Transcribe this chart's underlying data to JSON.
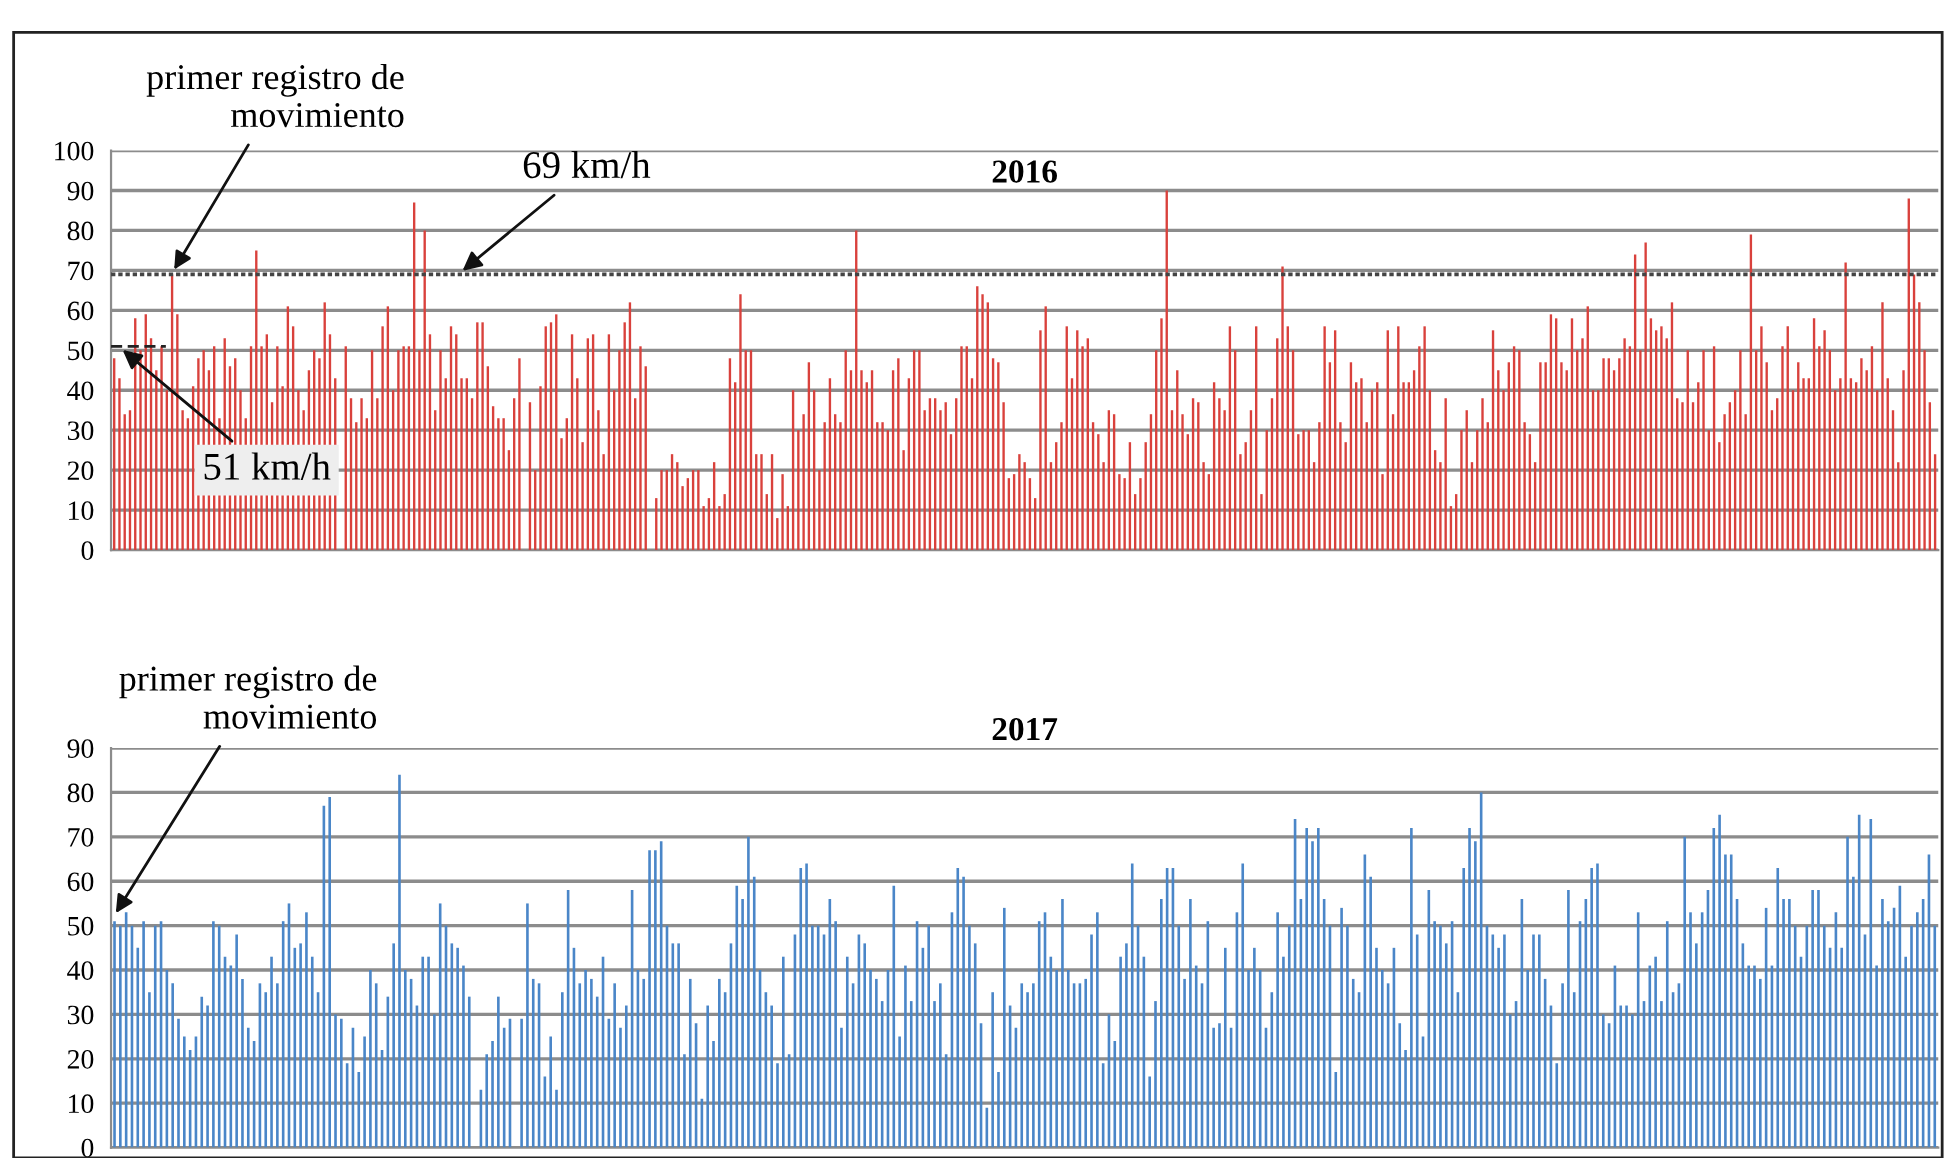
{
  "chart_data": [
    {
      "type": "bar",
      "title": "2016",
      "color": "#d9413c",
      "ylim": [
        0,
        100
      ],
      "yticks": [
        0,
        10,
        20,
        30,
        40,
        50,
        60,
        70,
        80,
        90,
        100
      ],
      "grid": "y",
      "tick_labels": "y",
      "ref_lines": [
        {
          "axis": "y",
          "value": 69,
          "label": "69 km/h",
          "line_style": "dotted",
          "color": "#444444"
        }
      ],
      "annotations": [
        "primer registro de\nmovimiento",
        {
          "text": "51 km/h",
          "y": 51
        }
      ],
      "categories": [
        null,
        null,
        null,
        null,
        null,
        null,
        null,
        null,
        null,
        null,
        null,
        null,
        null,
        null,
        null,
        null,
        null,
        null,
        null,
        null,
        null,
        null,
        null,
        null,
        null,
        null,
        null,
        null,
        null,
        null,
        null,
        null,
        null,
        null,
        null,
        null,
        null,
        null,
        null,
        null,
        null,
        null,
        null,
        null,
        null,
        null,
        null,
        null,
        null,
        null,
        null,
        null,
        null,
        null,
        null,
        null,
        null,
        null,
        null,
        null,
        null,
        null,
        null,
        null,
        null,
        null,
        null,
        null,
        null,
        null,
        null,
        null,
        null,
        null,
        null,
        null,
        null,
        null,
        null,
        null,
        null,
        null,
        null,
        null,
        null,
        null,
        null,
        null,
        null,
        null,
        null,
        null,
        null,
        null,
        null,
        null,
        null,
        null,
        null,
        null,
        null,
        null,
        null,
        null,
        null,
        null,
        null,
        null,
        null,
        null,
        null,
        null,
        null,
        null,
        null,
        null,
        null,
        null,
        null,
        null,
        null,
        null,
        null,
        null,
        null,
        null,
        null,
        null,
        null,
        null,
        null,
        null,
        null,
        null,
        null,
        null,
        null,
        null,
        null,
        null,
        null,
        null,
        null,
        null,
        null,
        null,
        null,
        null,
        null,
        null,
        null,
        null,
        null,
        null,
        null,
        null,
        null,
        null,
        null,
        null,
        null,
        null,
        null,
        null,
        null,
        null,
        null,
        null,
        null,
        null,
        null,
        null,
        null,
        null,
        null,
        null,
        null,
        null,
        null,
        null,
        null,
        null,
        null,
        null,
        null,
        null,
        null,
        null,
        null,
        null,
        null,
        null,
        null,
        null,
        null,
        null,
        null,
        null,
        null,
        null,
        null,
        null,
        null,
        null,
        null,
        null,
        null,
        null,
        null,
        null,
        null,
        null,
        null,
        null,
        null,
        null,
        null,
        null,
        null,
        null,
        null,
        null,
        null,
        null,
        null,
        null,
        null,
        null,
        null,
        null,
        null,
        null,
        null,
        null,
        null,
        null,
        null,
        null,
        null,
        null,
        null,
        null,
        null,
        null,
        null,
        null,
        null,
        null,
        null,
        null,
        null,
        null,
        null,
        null,
        null,
        null,
        null,
        null,
        null,
        null,
        null,
        null,
        null,
        null,
        null,
        null,
        null,
        null,
        null,
        null,
        null,
        null,
        null,
        null,
        null,
        null,
        null,
        null,
        null,
        null,
        null,
        null,
        null,
        null,
        null,
        null,
        null,
        null,
        null,
        null,
        null,
        null,
        null,
        null,
        null,
        null,
        null,
        null,
        null,
        null,
        null,
        null,
        null,
        null,
        null,
        null,
        null,
        null,
        null,
        null,
        null,
        null,
        null,
        null,
        null,
        null,
        null,
        null,
        null,
        null,
        null,
        null,
        null,
        null,
        null,
        null,
        null,
        null,
        null,
        null,
        null,
        null,
        null,
        null,
        null,
        null,
        null,
        null,
        null,
        null,
        null,
        null,
        null,
        null,
        null,
        null,
        null
      ],
      "values": [
        48,
        43,
        34,
        35,
        58,
        50,
        59,
        53,
        45,
        51,
        40,
        69,
        59,
        35,
        33,
        41,
        48,
        50,
        45,
        51,
        33,
        53,
        46,
        48,
        40,
        33,
        51,
        75,
        51,
        54,
        37,
        51,
        41,
        61,
        56,
        40,
        35,
        45,
        50,
        48,
        62,
        54,
        43,
        0,
        51,
        38,
        32,
        38,
        33,
        50,
        38,
        56,
        61,
        40,
        50,
        51,
        51,
        87,
        50,
        80,
        54,
        35,
        50,
        43,
        56,
        54,
        43,
        43,
        38,
        57,
        57,
        46,
        36,
        33,
        33,
        25,
        38,
        48,
        0,
        37,
        20,
        41,
        56,
        57,
        59,
        28,
        33,
        54,
        43,
        27,
        53,
        54,
        35,
        24,
        54,
        40,
        50,
        57,
        62,
        38,
        51,
        46,
        0,
        13,
        20,
        20,
        24,
        22,
        16,
        18,
        20,
        20,
        11,
        13,
        22,
        11,
        14,
        48,
        42,
        64,
        50,
        50,
        24,
        24,
        14,
        24,
        8,
        19,
        11,
        40,
        30,
        34,
        47,
        40,
        20,
        32,
        43,
        34,
        32,
        50,
        45,
        80,
        45,
        42,
        45,
        32,
        32,
        30,
        45,
        48,
        25,
        43,
        50,
        50,
        35,
        38,
        38,
        35,
        37,
        29,
        38,
        51,
        51,
        43,
        66,
        64,
        62,
        48,
        47,
        37,
        18,
        19,
        24,
        22,
        18,
        13,
        55,
        61,
        22,
        27,
        32,
        56,
        43,
        55,
        51,
        53,
        32,
        29,
        22,
        35,
        34,
        19,
        18,
        27,
        14,
        18,
        27,
        34,
        50,
        58,
        90,
        35,
        45,
        34,
        29,
        38,
        37,
        22,
        19,
        42,
        38,
        35,
        56,
        50,
        24,
        27,
        35,
        56,
        14,
        30,
        38,
        53,
        71,
        56,
        50,
        29,
        30,
        30,
        22,
        32,
        56,
        47,
        55,
        32,
        27,
        47,
        42,
        43,
        32,
        40,
        42,
        19,
        55,
        34,
        56,
        42,
        42,
        45,
        51,
        56,
        40,
        25,
        22,
        38,
        11,
        14,
        30,
        35,
        22,
        30,
        38,
        32,
        55,
        45,
        40,
        47,
        51,
        50,
        32,
        29,
        22,
        47,
        47,
        59,
        58,
        47,
        45,
        58,
        50,
        53,
        61,
        40,
        40,
        48,
        48,
        45,
        48,
        53,
        51,
        74,
        50,
        77,
        58,
        55,
        56,
        53,
        62,
        38,
        37,
        50,
        37,
        42,
        50,
        30,
        51,
        27,
        34,
        37,
        40,
        50,
        34,
        79,
        50,
        56,
        47,
        35,
        38,
        51,
        56,
        40,
        47,
        43,
        43,
        58,
        51,
        55,
        50,
        40,
        43,
        72,
        43,
        42,
        48,
        45,
        51,
        40,
        62,
        43,
        35,
        22,
        45,
        88,
        69,
        62,
        50,
        37,
        24
      ]
    },
    {
      "type": "bar",
      "title": "2017",
      "color": "#4a86c8",
      "ylim": [
        0,
        90
      ],
      "yticks": [
        0,
        10,
        20,
        30,
        40,
        50,
        60,
        70,
        80,
        90
      ],
      "grid": "y",
      "tick_labels": "y",
      "annotations": [
        "primer registro de\nmovimiento"
      ],
      "categories": [
        null,
        null,
        null,
        null,
        null,
        null,
        null,
        null,
        null,
        null,
        null,
        null,
        null,
        null,
        null,
        null,
        null,
        null,
        null,
        null,
        null,
        null,
        null,
        null,
        null,
        null,
        null,
        null,
        null,
        null,
        null,
        null,
        null,
        null,
        null,
        null,
        null,
        null,
        null,
        null,
        null,
        null,
        null,
        null,
        null,
        null,
        null,
        null,
        null,
        null,
        null,
        null,
        null,
        null,
        null,
        null,
        null,
        null,
        null,
        null,
        null,
        null,
        null,
        null,
        null,
        null,
        null,
        null,
        null,
        null,
        null,
        null,
        null,
        null,
        null,
        null,
        null,
        null,
        null,
        null,
        null,
        null,
        null,
        null,
        null,
        null,
        null,
        null,
        null,
        null,
        null,
        null,
        null,
        null,
        null,
        null,
        null,
        null,
        null,
        null,
        null,
        null,
        null,
        null,
        null,
        null,
        null,
        null,
        null,
        null,
        null,
        null,
        null,
        null,
        null,
        null,
        null,
        null,
        null,
        null,
        null,
        null,
        null,
        null,
        null,
        null,
        null,
        null,
        null,
        null,
        null,
        null,
        null,
        null,
        null,
        null,
        null,
        null,
        null,
        null,
        null,
        null,
        null,
        null,
        null,
        null,
        null,
        null,
        null,
        null,
        null,
        null,
        null,
        null,
        null,
        null,
        null,
        null,
        null,
        null,
        null,
        null,
        null,
        null,
        null,
        null,
        null,
        null,
        null,
        null,
        null,
        null,
        null,
        null,
        null,
        null,
        null,
        null,
        null,
        null,
        null,
        null,
        null,
        null,
        null,
        null,
        null,
        null,
        null,
        null,
        null,
        null,
        null,
        null,
        null,
        null,
        null,
        null,
        null,
        null,
        null,
        null,
        null,
        null,
        null,
        null,
        null,
        null,
        null,
        null,
        null,
        null,
        null,
        null,
        null,
        null,
        null,
        null,
        null,
        null,
        null,
        null,
        null,
        null,
        null,
        null,
        null,
        null,
        null,
        null,
        null,
        null,
        null,
        null,
        null,
        null,
        null,
        null,
        null,
        null,
        null,
        null,
        null,
        null,
        null,
        null,
        null,
        null,
        null,
        null,
        null,
        null,
        null,
        null,
        null,
        null,
        null,
        null,
        null,
        null,
        null,
        null,
        null,
        null,
        null,
        null,
        null,
        null,
        null,
        null,
        null,
        null,
        null,
        null,
        null,
        null,
        null,
        null,
        null,
        null,
        null,
        null,
        null,
        null,
        null,
        null,
        null,
        null,
        null,
        null,
        null,
        null,
        null,
        null,
        null,
        null,
        null,
        null,
        null,
        null,
        null,
        null,
        null,
        null,
        null,
        null,
        null,
        null,
        null,
        null,
        null,
        null,
        null,
        null
      ],
      "values": [
        51,
        50,
        53,
        50,
        45,
        51,
        35,
        50,
        51,
        40,
        37,
        29,
        25,
        22,
        25,
        34,
        32,
        51,
        50,
        43,
        41,
        48,
        38,
        27,
        24,
        37,
        35,
        43,
        37,
        51,
        55,
        45,
        46,
        53,
        43,
        35,
        77,
        79,
        30,
        29,
        19,
        27,
        17,
        25,
        40,
        37,
        22,
        34,
        46,
        84,
        40,
        38,
        32,
        43,
        43,
        30,
        55,
        50,
        46,
        45,
        41,
        34,
        0,
        13,
        21,
        24,
        34,
        27,
        29,
        0,
        29,
        55,
        38,
        37,
        16,
        25,
        13,
        35,
        58,
        45,
        37,
        40,
        38,
        34,
        43,
        29,
        37,
        27,
        32,
        58,
        40,
        38,
        67,
        67,
        69,
        50,
        46,
        46,
        21,
        38,
        28,
        11,
        32,
        24,
        38,
        35,
        46,
        59,
        56,
        70,
        61,
        40,
        35,
        32,
        19,
        43,
        21,
        48,
        63,
        64,
        50,
        50,
        48,
        56,
        51,
        27,
        43,
        37,
        48,
        46,
        40,
        38,
        33,
        40,
        59,
        25,
        41,
        33,
        51,
        45,
        50,
        33,
        37,
        21,
        53,
        63,
        61,
        50,
        46,
        28,
        9,
        35,
        17,
        54,
        32,
        27,
        37,
        35,
        37,
        51,
        53,
        43,
        40,
        56,
        40,
        37,
        37,
        38,
        48,
        53,
        19,
        30,
        24,
        43,
        46,
        64,
        50,
        43,
        16,
        33,
        56,
        63,
        63,
        50,
        38,
        56,
        41,
        37,
        51,
        27,
        28,
        45,
        27,
        53,
        64,
        40,
        45,
        40,
        27,
        35,
        53,
        43,
        50,
        74,
        56,
        72,
        69,
        72,
        56,
        50,
        17,
        54,
        50,
        38,
        35,
        66,
        61,
        45,
        40,
        37,
        45,
        28,
        22,
        72,
        48,
        25,
        58,
        51,
        50,
        46,
        51,
        35,
        63,
        72,
        69,
        80,
        50,
        48,
        45,
        48,
        30,
        33,
        56,
        40,
        48,
        48,
        38,
        32,
        19,
        37,
        58,
        35,
        51,
        56,
        63,
        64,
        30,
        28,
        41,
        32,
        32,
        30,
        53,
        33,
        41,
        43,
        33,
        51,
        35,
        37,
        70,
        53,
        46,
        53,
        58,
        72,
        75,
        66,
        66,
        56,
        46,
        41,
        41,
        38,
        54,
        41,
        63,
        56,
        56,
        50,
        43,
        50,
        58,
        58,
        50,
        45,
        53,
        45,
        70,
        61,
        75,
        48,
        74,
        41,
        56,
        51,
        54,
        59,
        43,
        50,
        53,
        56,
        66,
        50
      ]
    }
  ]
}
